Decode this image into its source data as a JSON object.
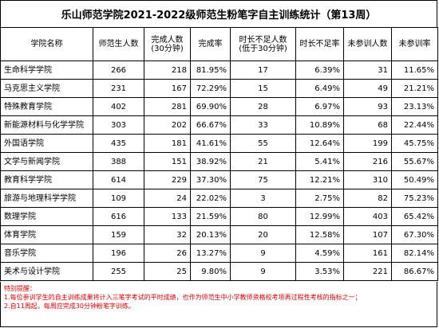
{
  "title": "乐山师范学院2021-2022级师范生粉笔字自主训练统计（第13周）",
  "headers": [
    [
      "学院名称"
    ],
    [
      "师范生人数"
    ],
    [
      "完成人数",
      "(30分钟)"
    ],
    [
      "完成率"
    ],
    [
      "时长不足人数",
      "(低于30分钟)"
    ],
    [
      "时长不足率"
    ],
    [
      "未参训人数"
    ],
    [
      "未参训率"
    ]
  ],
  "rows": [
    [
      "生命科学学院",
      "266",
      "218",
      "81.95%",
      "17",
      "6.39%",
      "31",
      "11.65%"
    ],
    [
      "马克思主义学院",
      "231",
      "167",
      "72.29%",
      "15",
      "6.49%",
      "49",
      "21.21%"
    ],
    [
      "特殊教育学院",
      "402",
      "281",
      "69.90%",
      "28",
      "6.97%",
      "93",
      "23.13%"
    ],
    [
      "新能源材料与化学学院",
      "303",
      "202",
      "66.67%",
      "33",
      "10.89%",
      "68",
      "22.44%"
    ],
    [
      "外国语学院",
      "435",
      "181",
      "41.61%",
      "55",
      "12.64%",
      "199",
      "45.75%"
    ],
    [
      "文学与新闻学院",
      "388",
      "151",
      "38.92%",
      "21",
      "5.41%",
      "216",
      "55.67%"
    ],
    [
      "教育科学学院",
      "614",
      "229",
      "37.30%",
      "75",
      "12.21%",
      "310",
      "50.49%"
    ],
    [
      "旅游与地理科学学院",
      "109",
      "24",
      "22.02%",
      "3",
      "2.75%",
      "82",
      "75.23%"
    ],
    [
      "数理学院",
      "616",
      "133",
      "21.59%",
      "80",
      "12.99%",
      "403",
      "65.42%"
    ],
    [
      "体育学院",
      "159",
      "32",
      "20.13%",
      "20",
      "12.58%",
      "107",
      "67.30%"
    ],
    [
      "音乐学院",
      "196",
      "26",
      "13.27%",
      "9",
      "4.59%",
      "161",
      "82.14%"
    ],
    [
      "美术与设计学院",
      "255",
      "25",
      "9.80%",
      "9",
      "3.53%",
      "221",
      "86.67%"
    ]
  ],
  "notes": {
    "heading": "特别提醒：",
    "line1": "1.每位参训学生的自主训练成果将计入三笔字考试的平时成绩，也作为师范生中小学教师资格校考项再过程性考核的指标之一；",
    "line2": "2.自11周起，每周应完成30分钟粉笔字训练。"
  }
}
